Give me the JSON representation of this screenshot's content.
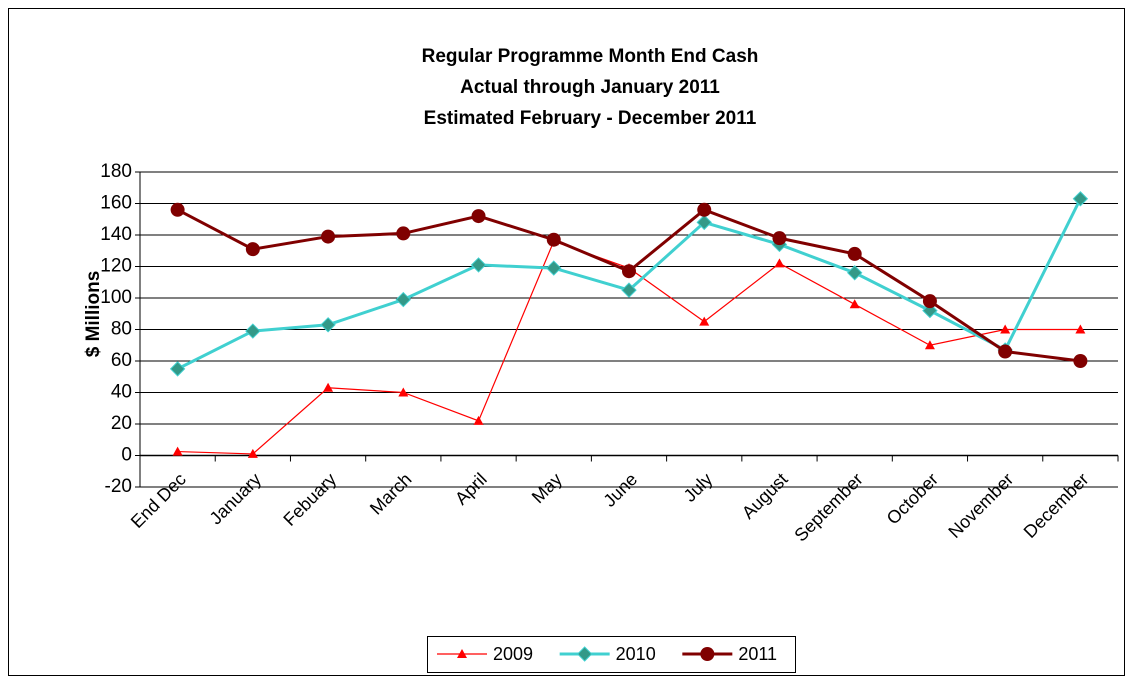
{
  "chart_data": {
    "type": "line",
    "title": "Regular Programme Month End Cash",
    "subtitle": [
      "Actual through January 2011",
      "Estimated February - December 2011"
    ],
    "y_label": "$ Millions",
    "categories": [
      "End Dec",
      "January",
      "Febuary",
      "March",
      "April",
      "May",
      "June",
      "July",
      "August",
      "September",
      "October",
      "November",
      "December"
    ],
    "series": [
      {
        "name": "2009",
        "color": "#ff0000",
        "marker": "triangle",
        "marker_color": "#ff0000",
        "values": [
          2.5,
          1,
          43,
          40,
          22,
          136,
          119,
          85,
          122,
          96,
          70,
          80,
          80
        ]
      },
      {
        "name": "2010",
        "color": "#40d0d0",
        "marker": "diamond",
        "marker_color": "#339988",
        "values": [
          55,
          79,
          83,
          99,
          121,
          119,
          105,
          148,
          134,
          116,
          92,
          67,
          163
        ]
      },
      {
        "name": "2011",
        "color": "#800000",
        "marker": "circle",
        "marker_color": "#800000",
        "values": [
          156,
          131,
          139,
          141,
          152,
          137,
          117,
          156,
          138,
          128,
          98,
          66,
          60
        ]
      }
    ],
    "ylim": [
      -20,
      180
    ],
    "yticks": [
      -20,
      0,
      20,
      40,
      60,
      80,
      100,
      120,
      140,
      160,
      180
    ],
    "negative_tick_color": "#ff0000",
    "grid": true,
    "legend": "bottom"
  }
}
